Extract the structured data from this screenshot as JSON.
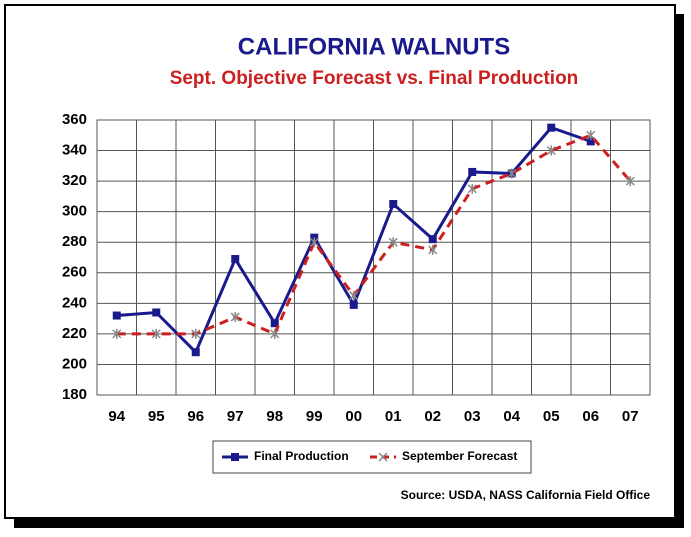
{
  "chart_data": {
    "type": "line",
    "title": "CALIFORNIA WALNUTS",
    "subtitle": "Sept. Objective Forecast vs. Final Production",
    "source": "Source:  USDA, NASS California Field Office",
    "categories": [
      "94",
      "95",
      "96",
      "97",
      "98",
      "99",
      "00",
      "01",
      "02",
      "03",
      "04",
      "05",
      "06",
      "07"
    ],
    "series": [
      {
        "name": "Final Production",
        "color": "#1a1a8c",
        "values": [
          232,
          234,
          208,
          269,
          227,
          283,
          239,
          305,
          282,
          326,
          325,
          355,
          346,
          null
        ]
      },
      {
        "name": "September Forecast",
        "color": "#cc1f1f",
        "values": [
          220,
          220,
          220,
          231,
          220,
          280,
          245,
          280,
          275,
          315,
          325,
          340,
          350,
          320
        ]
      }
    ],
    "ylim": [
      180,
      360
    ],
    "yticks": [
      180,
      200,
      220,
      240,
      260,
      280,
      300,
      320,
      340,
      360
    ],
    "grid": true
  }
}
